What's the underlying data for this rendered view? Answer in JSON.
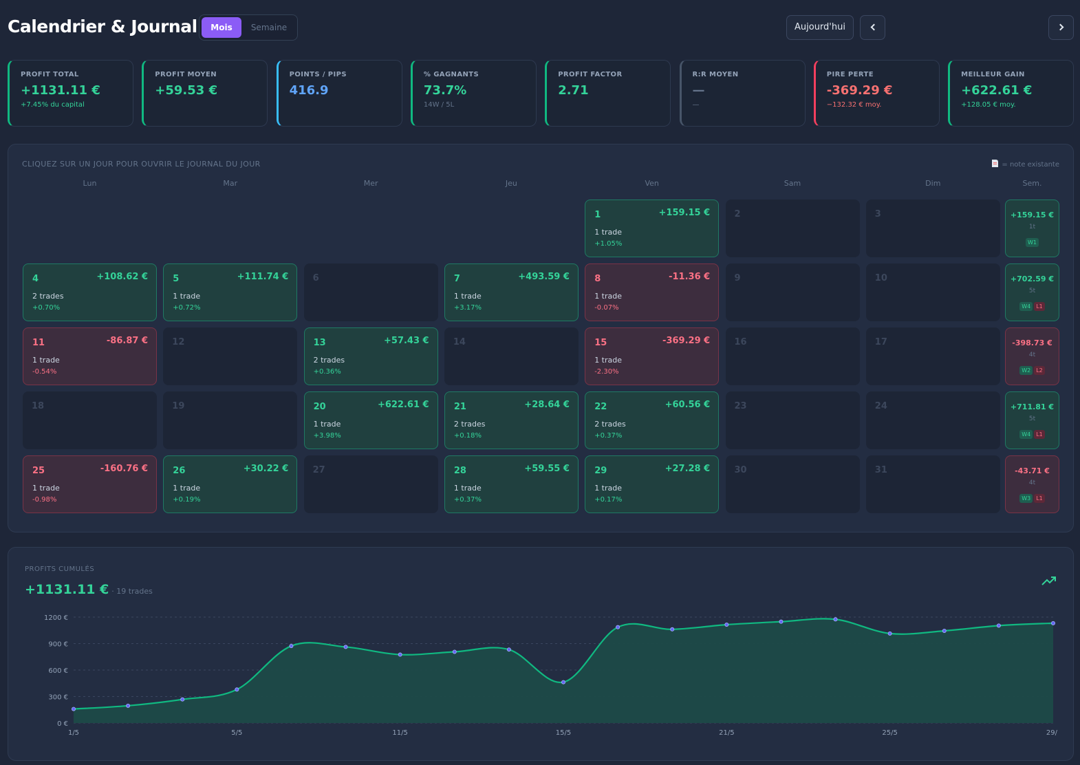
{
  "header": {
    "title": "Calendrier & Journal",
    "view_toggle": {
      "active": "Mois",
      "inactive": "Semaine"
    },
    "today_button": "Aujourd'hui",
    "prev_icon": "chevron-left-icon",
    "next_icon": "chevron-right-icon"
  },
  "stats": [
    {
      "label": "PROFIT TOTAL",
      "value": "+1131.11 €",
      "sub": "+7.45% du capital",
      "tone": "green",
      "sub_tone": "green",
      "accent": "#10b981"
    },
    {
      "label": "PROFIT MOYEN",
      "value": "+59.53 €",
      "sub": "",
      "tone": "green",
      "sub_tone": "muted",
      "accent": "#10b981"
    },
    {
      "label": "POINTS / PIPS",
      "value": "416.9",
      "sub": "",
      "tone": "blue",
      "sub_tone": "muted",
      "accent": "#38bdf8"
    },
    {
      "label": "% GAGNANTS",
      "value": "73.7%",
      "sub": "14W / 5L",
      "tone": "green",
      "sub_tone": "muted",
      "accent": "#10b981"
    },
    {
      "label": "PROFIT FACTOR",
      "value": "2.71",
      "sub": "",
      "tone": "green",
      "sub_tone": "muted",
      "accent": "#10b981"
    },
    {
      "label": "R:R MOYEN",
      "value": "—",
      "sub": "—",
      "tone": "gray",
      "sub_tone": "muted",
      "accent": "#475569"
    },
    {
      "label": "PIRE PERTE",
      "value": "-369.29 €",
      "sub": "−132.32 € moy.",
      "tone": "red",
      "sub_tone": "red",
      "accent": "#f43f5e"
    },
    {
      "label": "MEILLEUR GAIN",
      "value": "+622.61 €",
      "sub": "+128.05 € moy.",
      "tone": "green",
      "sub_tone": "green",
      "accent": "#10b981"
    }
  ],
  "calendar": {
    "hint": "CLIQUEZ SUR UN JOUR POUR OUVRIR LE JOURNAL DU JOUR",
    "legend": "= note existante",
    "legend_icon": "note-icon",
    "weekdays": [
      "Lun",
      "Mar",
      "Mer",
      "Jeu",
      "Ven",
      "Sam",
      "Dim",
      "Sem."
    ],
    "first_weekday_offset": 4,
    "days": [
      {
        "day": "1",
        "status": "win",
        "pnl": "+159.15 €",
        "trades": "1 trade",
        "pct": "+1.05%"
      },
      {
        "day": "2",
        "status": "empty"
      },
      {
        "day": "3",
        "status": "empty"
      },
      {
        "day": "4",
        "status": "win",
        "pnl": "+108.62 €",
        "trades": "2 trades",
        "pct": "+0.70%"
      },
      {
        "day": "5",
        "status": "win",
        "pnl": "+111.74 €",
        "trades": "1 trade",
        "pct": "+0.72%"
      },
      {
        "day": "6",
        "status": "empty"
      },
      {
        "day": "7",
        "status": "win",
        "pnl": "+493.59 €",
        "trades": "1 trade",
        "pct": "+3.17%"
      },
      {
        "day": "8",
        "status": "loss",
        "pnl": "-11.36 €",
        "trades": "1 trade",
        "pct": "-0.07%"
      },
      {
        "day": "9",
        "status": "empty"
      },
      {
        "day": "10",
        "status": "empty"
      },
      {
        "day": "11",
        "status": "loss",
        "pnl": "-86.87 €",
        "trades": "1 trade",
        "pct": "-0.54%"
      },
      {
        "day": "12",
        "status": "empty"
      },
      {
        "day": "13",
        "status": "win",
        "pnl": "+57.43 €",
        "trades": "2 trades",
        "pct": "+0.36%"
      },
      {
        "day": "14",
        "status": "empty"
      },
      {
        "day": "15",
        "status": "loss",
        "pnl": "-369.29 €",
        "trades": "1 trade",
        "pct": "-2.30%"
      },
      {
        "day": "16",
        "status": "empty"
      },
      {
        "day": "17",
        "status": "empty"
      },
      {
        "day": "18",
        "status": "empty"
      },
      {
        "day": "19",
        "status": "empty"
      },
      {
        "day": "20",
        "status": "win",
        "pnl": "+622.61 €",
        "trades": "1 trade",
        "pct": "+3.98%"
      },
      {
        "day": "21",
        "status": "win",
        "pnl": "+28.64 €",
        "trades": "2 trades",
        "pct": "+0.18%"
      },
      {
        "day": "22",
        "status": "win",
        "pnl": "+60.56 €",
        "trades": "2 trades",
        "pct": "+0.37%"
      },
      {
        "day": "23",
        "status": "empty"
      },
      {
        "day": "24",
        "status": "empty"
      },
      {
        "day": "25",
        "status": "loss",
        "pnl": "-160.76 €",
        "trades": "1 trade",
        "pct": "-0.98%"
      },
      {
        "day": "26",
        "status": "win",
        "pnl": "+30.22 €",
        "trades": "1 trade",
        "pct": "+0.19%"
      },
      {
        "day": "27",
        "status": "empty"
      },
      {
        "day": "28",
        "status": "win",
        "pnl": "+59.55 €",
        "trades": "1 trade",
        "pct": "+0.37%"
      },
      {
        "day": "29",
        "status": "win",
        "pnl": "+27.28 €",
        "trades": "1 trade",
        "pct": "+0.17%"
      },
      {
        "day": "30",
        "status": "empty"
      },
      {
        "day": "31",
        "status": "empty"
      }
    ],
    "weeks": [
      {
        "pnl": "+159.15 €",
        "count": "1t",
        "status": "win",
        "badges": [
          {
            "text": "W1",
            "kind": "w"
          }
        ]
      },
      {
        "pnl": "+702.59 €",
        "count": "5t",
        "status": "win",
        "badges": [
          {
            "text": "W4",
            "kind": "w"
          },
          {
            "text": "L1",
            "kind": "l"
          }
        ]
      },
      {
        "pnl": "-398.73 €",
        "count": "4t",
        "status": "loss",
        "badges": [
          {
            "text": "W2",
            "kind": "w"
          },
          {
            "text": "L2",
            "kind": "l"
          }
        ]
      },
      {
        "pnl": "+711.81 €",
        "count": "5t",
        "status": "win",
        "badges": [
          {
            "text": "W4",
            "kind": "w"
          },
          {
            "text": "L1",
            "kind": "l"
          }
        ]
      },
      {
        "pnl": "-43.71 €",
        "count": "4t",
        "status": "loss",
        "badges": [
          {
            "text": "W3",
            "kind": "w"
          },
          {
            "text": "L1",
            "kind": "l"
          }
        ]
      }
    ]
  },
  "cumulative": {
    "label": "PROFITS CUMULÉS",
    "total": "+1131.11 €",
    "trades": "· 19 trades",
    "icon": "trending-up-icon"
  },
  "chart_data": {
    "type": "area",
    "title": "",
    "xlabel": "",
    "ylabel": "",
    "x": [
      "1/5",
      "4/5",
      "4/5",
      "5/5",
      "7/5",
      "8/5",
      "11/5",
      "13/5",
      "13/5",
      "15/5",
      "20/5",
      "21/5",
      "21/5",
      "22/5",
      "22/5",
      "25/5",
      "26/5",
      "28/5",
      "29/5"
    ],
    "series": [
      {
        "values": [
          159.15,
          196.2,
          267.77,
          379.51,
          873.1,
          861.74,
          774.87,
          806.5,
          832.3,
          463.01,
          1085.62,
          1061.4,
          1114.26,
          1148.1,
          1174.82,
          1014.06,
          1044.28,
          1103.83,
          1131.11
        ]
      }
    ],
    "x_tick_labels": [
      "1/5",
      "5/5",
      "11/5",
      "15/5",
      "21/5",
      "25/5",
      "29/"
    ],
    "y_tick_labels": [
      "0 €",
      "300 €",
      "600 €",
      "900 €",
      "1200 €"
    ],
    "y_ticks": [
      0,
      300,
      600,
      900,
      1200
    ],
    "ylim": [
      0,
      1200
    ],
    "grid": true,
    "line_color": "#10b981",
    "fill_color": "#1e4a48",
    "point_color": "#6366f1"
  }
}
